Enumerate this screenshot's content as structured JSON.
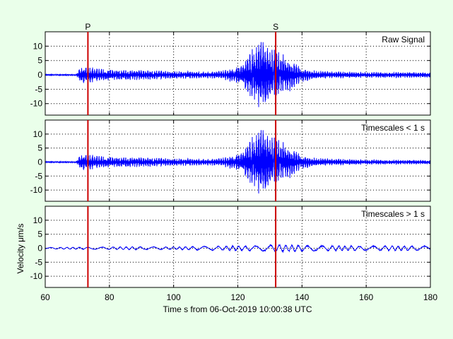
{
  "chart_data": {
    "type": "line",
    "xlabel": "Time s from 06-Oct-2019 10:00:38 UTC",
    "ylabel": "Velocity μm/s",
    "xlim": [
      60,
      180
    ],
    "ylim": [
      -14,
      15
    ],
    "xticks": [
      60,
      80,
      100,
      120,
      140,
      160,
      180
    ],
    "yticks": [
      -10,
      -5,
      0,
      5,
      10
    ],
    "grid": true,
    "line_color": "#0000ff",
    "pick_color": "#cc0000",
    "signal_start": 70,
    "picks": [
      {
        "label": "P",
        "x": 73.3
      },
      {
        "label": "S",
        "x": 131.8
      }
    ],
    "panels": [
      {
        "label": "Raw Signal",
        "envelope": [
          [
            60,
            0.6
          ],
          [
            69,
            0.6
          ],
          [
            70,
            1.2
          ],
          [
            71,
            3.0
          ],
          [
            73,
            3.2
          ],
          [
            75,
            2.5
          ],
          [
            80,
            2.0
          ],
          [
            90,
            1.8
          ],
          [
            100,
            1.4
          ],
          [
            110,
            1.2
          ],
          [
            115,
            1.5
          ],
          [
            120,
            3.0
          ],
          [
            122,
            5.0
          ],
          [
            124,
            8.5
          ],
          [
            126,
            11.5
          ],
          [
            127,
            13.0
          ],
          [
            128,
            12.5
          ],
          [
            129,
            12.0
          ],
          [
            130,
            10.0
          ],
          [
            131,
            9.0
          ],
          [
            132,
            8.5
          ],
          [
            134,
            7.5
          ],
          [
            136,
            6.0
          ],
          [
            138,
            4.0
          ],
          [
            140,
            2.5
          ],
          [
            145,
            1.5
          ],
          [
            150,
            1.3
          ],
          [
            160,
            1.0
          ],
          [
            170,
            1.0
          ],
          [
            175,
            1.0
          ],
          [
            180,
            1.0
          ]
        ]
      },
      {
        "label": "Timescales < 1 s",
        "envelope": [
          [
            60,
            0.6
          ],
          [
            69,
            0.6
          ],
          [
            70,
            1.2
          ],
          [
            71,
            3.0
          ],
          [
            73,
            3.2
          ],
          [
            75,
            2.5
          ],
          [
            80,
            2.0
          ],
          [
            90,
            1.8
          ],
          [
            100,
            1.4
          ],
          [
            110,
            1.2
          ],
          [
            115,
            1.5
          ],
          [
            120,
            3.0
          ],
          [
            122,
            5.0
          ],
          [
            124,
            8.5
          ],
          [
            126,
            11.5
          ],
          [
            127,
            13.0
          ],
          [
            128,
            12.5
          ],
          [
            129,
            12.0
          ],
          [
            130,
            10.0
          ],
          [
            131,
            9.0
          ],
          [
            132,
            8.5
          ],
          [
            134,
            7.5
          ],
          [
            136,
            6.0
          ],
          [
            138,
            4.0
          ],
          [
            140,
            2.5
          ],
          [
            145,
            1.5
          ],
          [
            150,
            1.3
          ],
          [
            160,
            0.9
          ],
          [
            170,
            0.8
          ],
          [
            175,
            0.8
          ],
          [
            180,
            0.8
          ]
        ]
      },
      {
        "label": "Timescales > 1 s",
        "envelope": [
          [
            60,
            0.3
          ],
          [
            70,
            0.4
          ],
          [
            80,
            0.5
          ],
          [
            90,
            0.6
          ],
          [
            100,
            0.5
          ],
          [
            110,
            0.8
          ],
          [
            120,
            0.9
          ],
          [
            126,
            1.0
          ],
          [
            130,
            1.3
          ],
          [
            132,
            1.5
          ],
          [
            140,
            1.2
          ],
          [
            150,
            1.0
          ],
          [
            160,
            0.9
          ],
          [
            170,
            0.9
          ],
          [
            180,
            0.9
          ]
        ]
      }
    ]
  }
}
